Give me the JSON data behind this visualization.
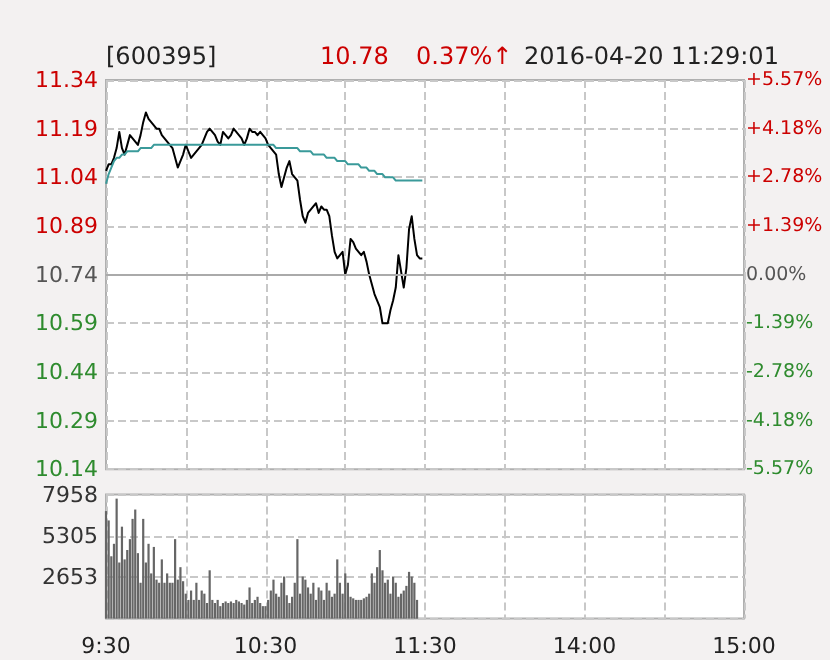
{
  "chart_data": [
    {
      "type": "line",
      "title": "[600395]",
      "annotations": [
        "10.78",
        "0.37%↑",
        "2016-04-20 11:29:01"
      ],
      "ylim": [
        10.14,
        11.34
      ],
      "yticks": [
        10.14,
        10.29,
        10.44,
        10.59,
        10.74,
        10.89,
        11.04,
        11.19,
        11.34
      ],
      "y2lim": [
        -5.57,
        5.57
      ],
      "y2ticks": [
        {
          "value": -5.57,
          "label": "-5.57%"
        },
        {
          "value": -4.18,
          "label": "-4.18%"
        },
        {
          "value": -2.78,
          "label": "-2.78%"
        },
        {
          "value": -1.39,
          "label": "-1.39%"
        },
        {
          "value": 0,
          "label": "0.00%"
        },
        {
          "value": 1.39,
          "label": "+1.39%"
        },
        {
          "value": 2.78,
          "label": "+2.78%"
        },
        {
          "value": 4.18,
          "label": "+4.18%"
        },
        {
          "value": 5.57,
          "label": "+5.57%"
        }
      ],
      "tick_labels": "y",
      "grid": true,
      "ref_lines": [
        {
          "axis": "y",
          "value": 10.74,
          "color": "#aaaaaa"
        }
      ],
      "series": [
        {
          "color": "#000000",
          "values": [
            11.06,
            11.08,
            11.08,
            11.1,
            11.13,
            11.18,
            11.13,
            11.11,
            11.14,
            11.17,
            11.16,
            11.15,
            11.14,
            11.17,
            11.21,
            11.24,
            11.22,
            11.21,
            11.2,
            11.19,
            11.19,
            11.17,
            11.16,
            11.15,
            11.14,
            11.13,
            11.1,
            11.07,
            11.09,
            11.11,
            11.14,
            11.12,
            11.1,
            11.11,
            11.12,
            11.13,
            11.14,
            11.16,
            11.18,
            11.19,
            11.18,
            11.17,
            11.15,
            11.14,
            11.18,
            11.17,
            11.16,
            11.17,
            11.19,
            11.18,
            11.17,
            11.16,
            11.14,
            11.16,
            11.19,
            11.18,
            11.18,
            11.17,
            11.18,
            11.17,
            11.16,
            11.14,
            11.13,
            11.12,
            11.11,
            11.05,
            11.01,
            11.04,
            11.07,
            11.09,
            11.05,
            11.04,
            11.03,
            10.97,
            10.92,
            10.9,
            10.93,
            10.94,
            10.95,
            10.96,
            10.93,
            10.95,
            10.94,
            10.94,
            10.92,
            10.86,
            10.81,
            10.79,
            10.8,
            10.81,
            10.74,
            10.77,
            10.85,
            10.84,
            10.82,
            10.81,
            10.8,
            10.81,
            10.78,
            10.74,
            10.71,
            10.68,
            10.66,
            10.64,
            10.59,
            10.59,
            10.59,
            10.63,
            10.66,
            10.7,
            10.8,
            10.75,
            10.7,
            10.76,
            10.88,
            10.92,
            10.85,
            10.8,
            10.79,
            10.79,
            null,
            null,
            null,
            null,
            null,
            null,
            null,
            null,
            null,
            null,
            null,
            null,
            null,
            null,
            null,
            null,
            null,
            null,
            null,
            null,
            null,
            null,
            null,
            null,
            null,
            null,
            null,
            null,
            null,
            null,
            null,
            null,
            null,
            null,
            null,
            null,
            null,
            null,
            null,
            null,
            null,
            null,
            null,
            null,
            null,
            null,
            null,
            null,
            null,
            null,
            null,
            null,
            null,
            null,
            null,
            null,
            null,
            null,
            null,
            null,
            null,
            null,
            null,
            null,
            null,
            null,
            null,
            null,
            null,
            null,
            null,
            null,
            null,
            null,
            null,
            null,
            null,
            null,
            null,
            null,
            null,
            null,
            null,
            null,
            null,
            null,
            null,
            null,
            null,
            null,
            null,
            null,
            null,
            null,
            null,
            null,
            null,
            null,
            null,
            null,
            null,
            null,
            null,
            null,
            null,
            null,
            null,
            null,
            null,
            null,
            null,
            null,
            null,
            null,
            null,
            null,
            null,
            null,
            null,
            null,
            null
          ]
        },
        {
          "color": "#3a9a9a",
          "values": [
            11.02,
            11.05,
            11.07,
            11.09,
            11.1,
            11.1,
            11.11,
            11.11,
            11.12,
            11.12,
            11.12,
            11.12,
            11.12,
            11.13,
            11.13,
            11.13,
            11.13,
            11.13,
            11.14,
            11.14,
            11.14,
            11.14,
            11.14,
            11.14,
            11.14,
            11.14,
            11.14,
            11.14,
            11.14,
            11.14,
            11.14,
            11.14,
            11.14,
            11.14,
            11.14,
            11.14,
            11.14,
            11.14,
            11.14,
            11.14,
            11.14,
            11.14,
            11.14,
            11.14,
            11.14,
            11.14,
            11.14,
            11.14,
            11.14,
            11.14,
            11.14,
            11.14,
            11.14,
            11.14,
            11.14,
            11.14,
            11.14,
            11.14,
            11.14,
            11.14,
            11.14,
            11.14,
            11.14,
            11.14,
            11.13,
            11.13,
            11.13,
            11.13,
            11.13,
            11.13,
            11.13,
            11.13,
            11.13,
            11.12,
            11.12,
            11.12,
            11.12,
            11.12,
            11.11,
            11.11,
            11.11,
            11.11,
            11.11,
            11.1,
            11.1,
            11.1,
            11.1,
            11.09,
            11.09,
            11.09,
            11.09,
            11.08,
            11.08,
            11.08,
            11.08,
            11.08,
            11.07,
            11.07,
            11.07,
            11.06,
            11.06,
            11.06,
            11.05,
            11.05,
            11.05,
            11.04,
            11.04,
            11.04,
            11.04,
            11.03,
            11.03,
            11.03,
            11.03,
            11.03,
            11.03,
            11.03,
            11.03,
            11.03,
            11.03,
            11.03,
            null,
            null,
            null,
            null,
            null,
            null,
            null,
            null,
            null,
            null,
            null,
            null,
            null,
            null,
            null,
            null,
            null,
            null,
            null,
            null,
            null,
            null,
            null,
            null,
            null,
            null,
            null,
            null,
            null,
            null,
            null,
            null,
            null,
            null,
            null,
            null,
            null,
            null,
            null,
            null,
            null,
            null,
            null,
            null,
            null,
            null,
            null,
            null,
            null,
            null,
            null,
            null,
            null,
            null,
            null,
            null,
            null,
            null,
            null,
            null,
            null,
            null,
            null,
            null,
            null,
            null,
            null,
            null,
            null,
            null,
            null,
            null,
            null,
            null,
            null,
            null,
            null,
            null,
            null,
            null,
            null,
            null,
            null,
            null,
            null,
            null,
            null,
            null,
            null,
            null,
            null,
            null,
            null,
            null,
            null,
            null,
            null,
            null,
            null,
            null,
            null,
            null,
            null,
            null,
            null,
            null,
            null,
            null,
            null,
            null,
            null,
            null,
            null,
            null,
            null,
            null,
            null,
            null,
            null,
            null,
            null
          ]
        }
      ]
    },
    {
      "type": "bar",
      "categories": [
        "9:30",
        null,
        null,
        null,
        null,
        null,
        null,
        null,
        null,
        null,
        null,
        null,
        null,
        null,
        null,
        null,
        null,
        null,
        null,
        null,
        null,
        null,
        null,
        null,
        null,
        null,
        null,
        null,
        null,
        null,
        null,
        null,
        null,
        null,
        null,
        null,
        null,
        null,
        null,
        null,
        null,
        null,
        null,
        null,
        null,
        null,
        null,
        null,
        null,
        null,
        null,
        null,
        null,
        null,
        null,
        null,
        null,
        null,
        null,
        null,
        "10:30",
        null,
        null,
        null,
        null,
        null,
        null,
        null,
        null,
        null,
        null,
        null,
        null,
        null,
        null,
        null,
        null,
        null,
        null,
        null,
        null,
        null,
        null,
        null,
        null,
        null,
        null,
        null,
        null,
        null,
        null,
        null,
        null,
        null,
        null,
        null,
        null,
        null,
        null,
        null,
        null,
        null,
        null,
        null,
        null,
        null,
        null,
        null,
        null,
        null,
        null,
        null,
        null,
        null,
        null,
        null,
        null,
        null,
        null,
        null,
        "11:30",
        null,
        null,
        null,
        null,
        null,
        null,
        null,
        null,
        null,
        null,
        null,
        null,
        null,
        null,
        null,
        null,
        null,
        null,
        null,
        null,
        null,
        null,
        null,
        null,
        null,
        null,
        null,
        null,
        null,
        null,
        null,
        null,
        null,
        null,
        null,
        null,
        null,
        null,
        null,
        null,
        null,
        null,
        null,
        null,
        null,
        null,
        null,
        null,
        null,
        null,
        null,
        null,
        null,
        null,
        null,
        null,
        null,
        null,
        null,
        "14:00",
        null,
        null,
        null,
        null,
        null,
        null,
        null,
        null,
        null,
        null,
        null,
        null,
        null,
        null,
        null,
        null,
        null,
        null,
        null,
        null,
        null,
        null,
        null,
        null,
        null,
        null,
        null,
        null,
        null,
        null,
        null,
        null,
        null,
        null,
        null,
        null,
        null,
        null,
        null,
        null,
        null,
        null,
        null,
        null,
        null,
        null,
        null,
        null,
        null,
        null,
        null,
        null,
        null,
        null,
        null,
        null,
        null,
        null,
        null,
        "15:00"
      ],
      "ylim": [
        0,
        7958
      ],
      "yticks": [
        {
          "value": 0,
          "label": null
        },
        2653,
        5305,
        7958
      ],
      "grid": true,
      "series": [
        {
          "color": "#666666",
          "values": [
            6900,
            6300,
            4000,
            4800,
            7700,
            3600,
            5900,
            3800,
            4400,
            5100,
            6400,
            7000,
            4200,
            2300,
            6400,
            3600,
            4800,
            2900,
            4600,
            2500,
            2300,
            3800,
            2300,
            2900,
            2300,
            2300,
            5100,
            2500,
            3300,
            2400,
            1600,
            1200,
            1800,
            1200,
            2300,
            1200,
            1800,
            1600,
            1000,
            3100,
            1200,
            1000,
            1200,
            800,
            1000,
            1100,
            1000,
            1100,
            1000,
            1200,
            1100,
            1000,
            900,
            1200,
            2000,
            1000,
            1200,
            1400,
            1000,
            800,
            800,
            1200,
            1800,
            2500,
            1600,
            1400,
            2300,
            2700,
            1500,
            1000,
            1400,
            2300,
            5100,
            1600,
            2700,
            2500,
            2000,
            1600,
            2300,
            1200,
            2000,
            1800,
            1200,
            2300,
            1800,
            1400,
            1600,
            3800,
            2300,
            1600,
            2900,
            2300,
            1400,
            1300,
            1200,
            1200,
            1200,
            1300,
            1400,
            1600,
            2900,
            2300,
            3300,
            4400,
            3100,
            2300,
            2500,
            1600,
            2700,
            2300,
            1400,
            1600,
            1800,
            2100,
            3000,
            2700,
            2300,
            1200,
            null,
            null,
            null,
            null,
            null,
            null,
            null,
            null,
            null,
            null,
            null,
            null,
            null,
            null,
            null,
            null,
            null,
            null,
            null,
            null,
            null,
            null,
            null,
            null,
            null,
            null,
            null,
            null,
            null,
            null,
            null,
            null,
            null,
            null,
            null,
            null,
            null,
            null,
            null,
            null,
            null,
            null,
            null,
            null,
            null,
            null,
            null,
            null,
            null,
            null,
            null,
            null,
            null,
            null,
            null,
            null,
            null,
            null,
            null,
            null,
            null,
            null,
            null,
            null,
            null,
            null,
            null,
            null,
            null,
            null,
            null,
            null,
            null,
            null,
            null,
            null,
            null,
            null,
            null,
            null,
            null,
            null,
            null,
            null,
            null,
            null,
            null,
            null,
            null,
            null,
            null,
            null,
            null,
            null,
            null,
            null,
            null,
            null,
            null,
            null,
            null,
            null,
            null,
            null,
            null,
            null,
            null,
            null,
            null,
            null,
            null,
            null,
            null,
            null,
            null,
            null,
            null,
            null,
            null,
            null,
            null,
            null,
            null
          ]
        }
      ]
    }
  ]
}
